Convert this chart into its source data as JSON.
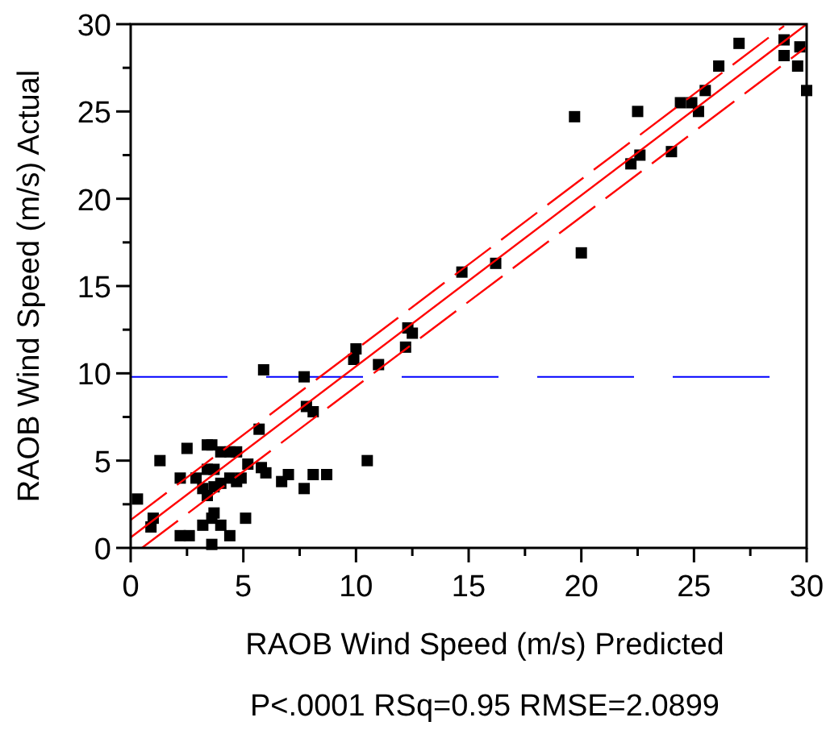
{
  "chart_data": {
    "type": "scatter",
    "xlabel": "RAOB Wind Speed (m/s) Predicted",
    "ylabel": "RAOB Wind Speed (m/s) Actual",
    "annotations": [
      "P<.0001 RSq=0.95 RMSE=2.0899"
    ],
    "xlim": [
      0,
      30
    ],
    "ylim": [
      0,
      30
    ],
    "xticks": [
      0,
      {
        "value": 2.5,
        "label": null
      },
      5,
      {
        "value": 7.5,
        "label": null
      },
      10,
      {
        "value": 12.5,
        "label": null
      },
      15,
      {
        "value": 17.5,
        "label": null
      },
      20,
      {
        "value": 22.5,
        "label": null
      },
      25,
      {
        "value": 27.5,
        "label": null
      },
      30
    ],
    "yticks": [
      0,
      {
        "value": 2.5,
        "label": null
      },
      5,
      {
        "value": 7.5,
        "label": null
      },
      10,
      {
        "value": 12.5,
        "label": null
      },
      15,
      {
        "value": 17.5,
        "label": null
      },
      20,
      {
        "value": 22.5,
        "label": null
      },
      25,
      {
        "value": 27.5,
        "label": null
      },
      30
    ],
    "grid": false,
    "ref_lines": [
      {
        "axis": "y",
        "value": 9.8,
        "color": "#0000ff",
        "line_style": "dashed"
      }
    ],
    "series": [
      {
        "color": "#000000",
        "marker": "square",
        "x": [
          0.3,
          1.0,
          0.9,
          1.3,
          2.2,
          2.2,
          2.6,
          2.5,
          2.9,
          3.2,
          3.2,
          3.4,
          3.6,
          3.4,
          3.7,
          3.6,
          3.7,
          3.6,
          3.4,
          3.7,
          4.0,
          4.0,
          4.4,
          4.0,
          4.4,
          4.7,
          4.4,
          4.7,
          4.9,
          5.2,
          5.1,
          5.7,
          5.8,
          6.0,
          6.7,
          7.0,
          7.7,
          8.1,
          8.7,
          10.5,
          7.8,
          8.1,
          5.9,
          7.7,
          9.9,
          10.0,
          11.0,
          12.2,
          12.3,
          12.5,
          14.7,
          16.2,
          19.7,
          20.0,
          22.2,
          22.6,
          22.5,
          24.0,
          24.4,
          24.9,
          25.2,
          25.5,
          26.1,
          27.0,
          29.0,
          29.0,
          29.7,
          29.6,
          30.0
        ],
        "values": [
          2.8,
          1.7,
          1.2,
          5.0,
          4.0,
          0.7,
          0.7,
          5.7,
          4.0,
          1.3,
          3.4,
          5.9,
          5.9,
          4.5,
          4.5,
          1.7,
          2.0,
          0.2,
          3.0,
          3.5,
          3.7,
          1.3,
          0.7,
          5.5,
          5.5,
          5.5,
          4.0,
          3.8,
          4.0,
          4.8,
          1.7,
          6.8,
          4.6,
          4.3,
          3.8,
          4.2,
          3.4,
          4.2,
          4.2,
          5.0,
          8.1,
          7.8,
          10.2,
          9.8,
          10.8,
          11.4,
          10.5,
          11.5,
          12.6,
          12.3,
          15.8,
          16.3,
          24.7,
          16.9,
          22.0,
          22.5,
          25.0,
          22.7,
          25.5,
          25.5,
          25.0,
          26.2,
          27.6,
          28.9,
          29.1,
          28.2,
          28.7,
          27.6,
          26.2
        ]
      },
      {
        "type": "line",
        "color": "#ff0000",
        "marker": "none",
        "line_style": "solid",
        "x": [
          0,
          30
        ],
        "values": [
          0.6,
          30.0
        ]
      },
      {
        "type": "line",
        "color": "#ff0000",
        "marker": "none",
        "line_style": "dashed",
        "x": [
          0,
          29
        ],
        "values": [
          1.6,
          29.9
        ]
      },
      {
        "type": "line",
        "color": "#ff0000",
        "marker": "none",
        "line_style": "dashed",
        "x": [
          0.5,
          30
        ],
        "values": [
          0,
          28.7
        ]
      }
    ]
  }
}
